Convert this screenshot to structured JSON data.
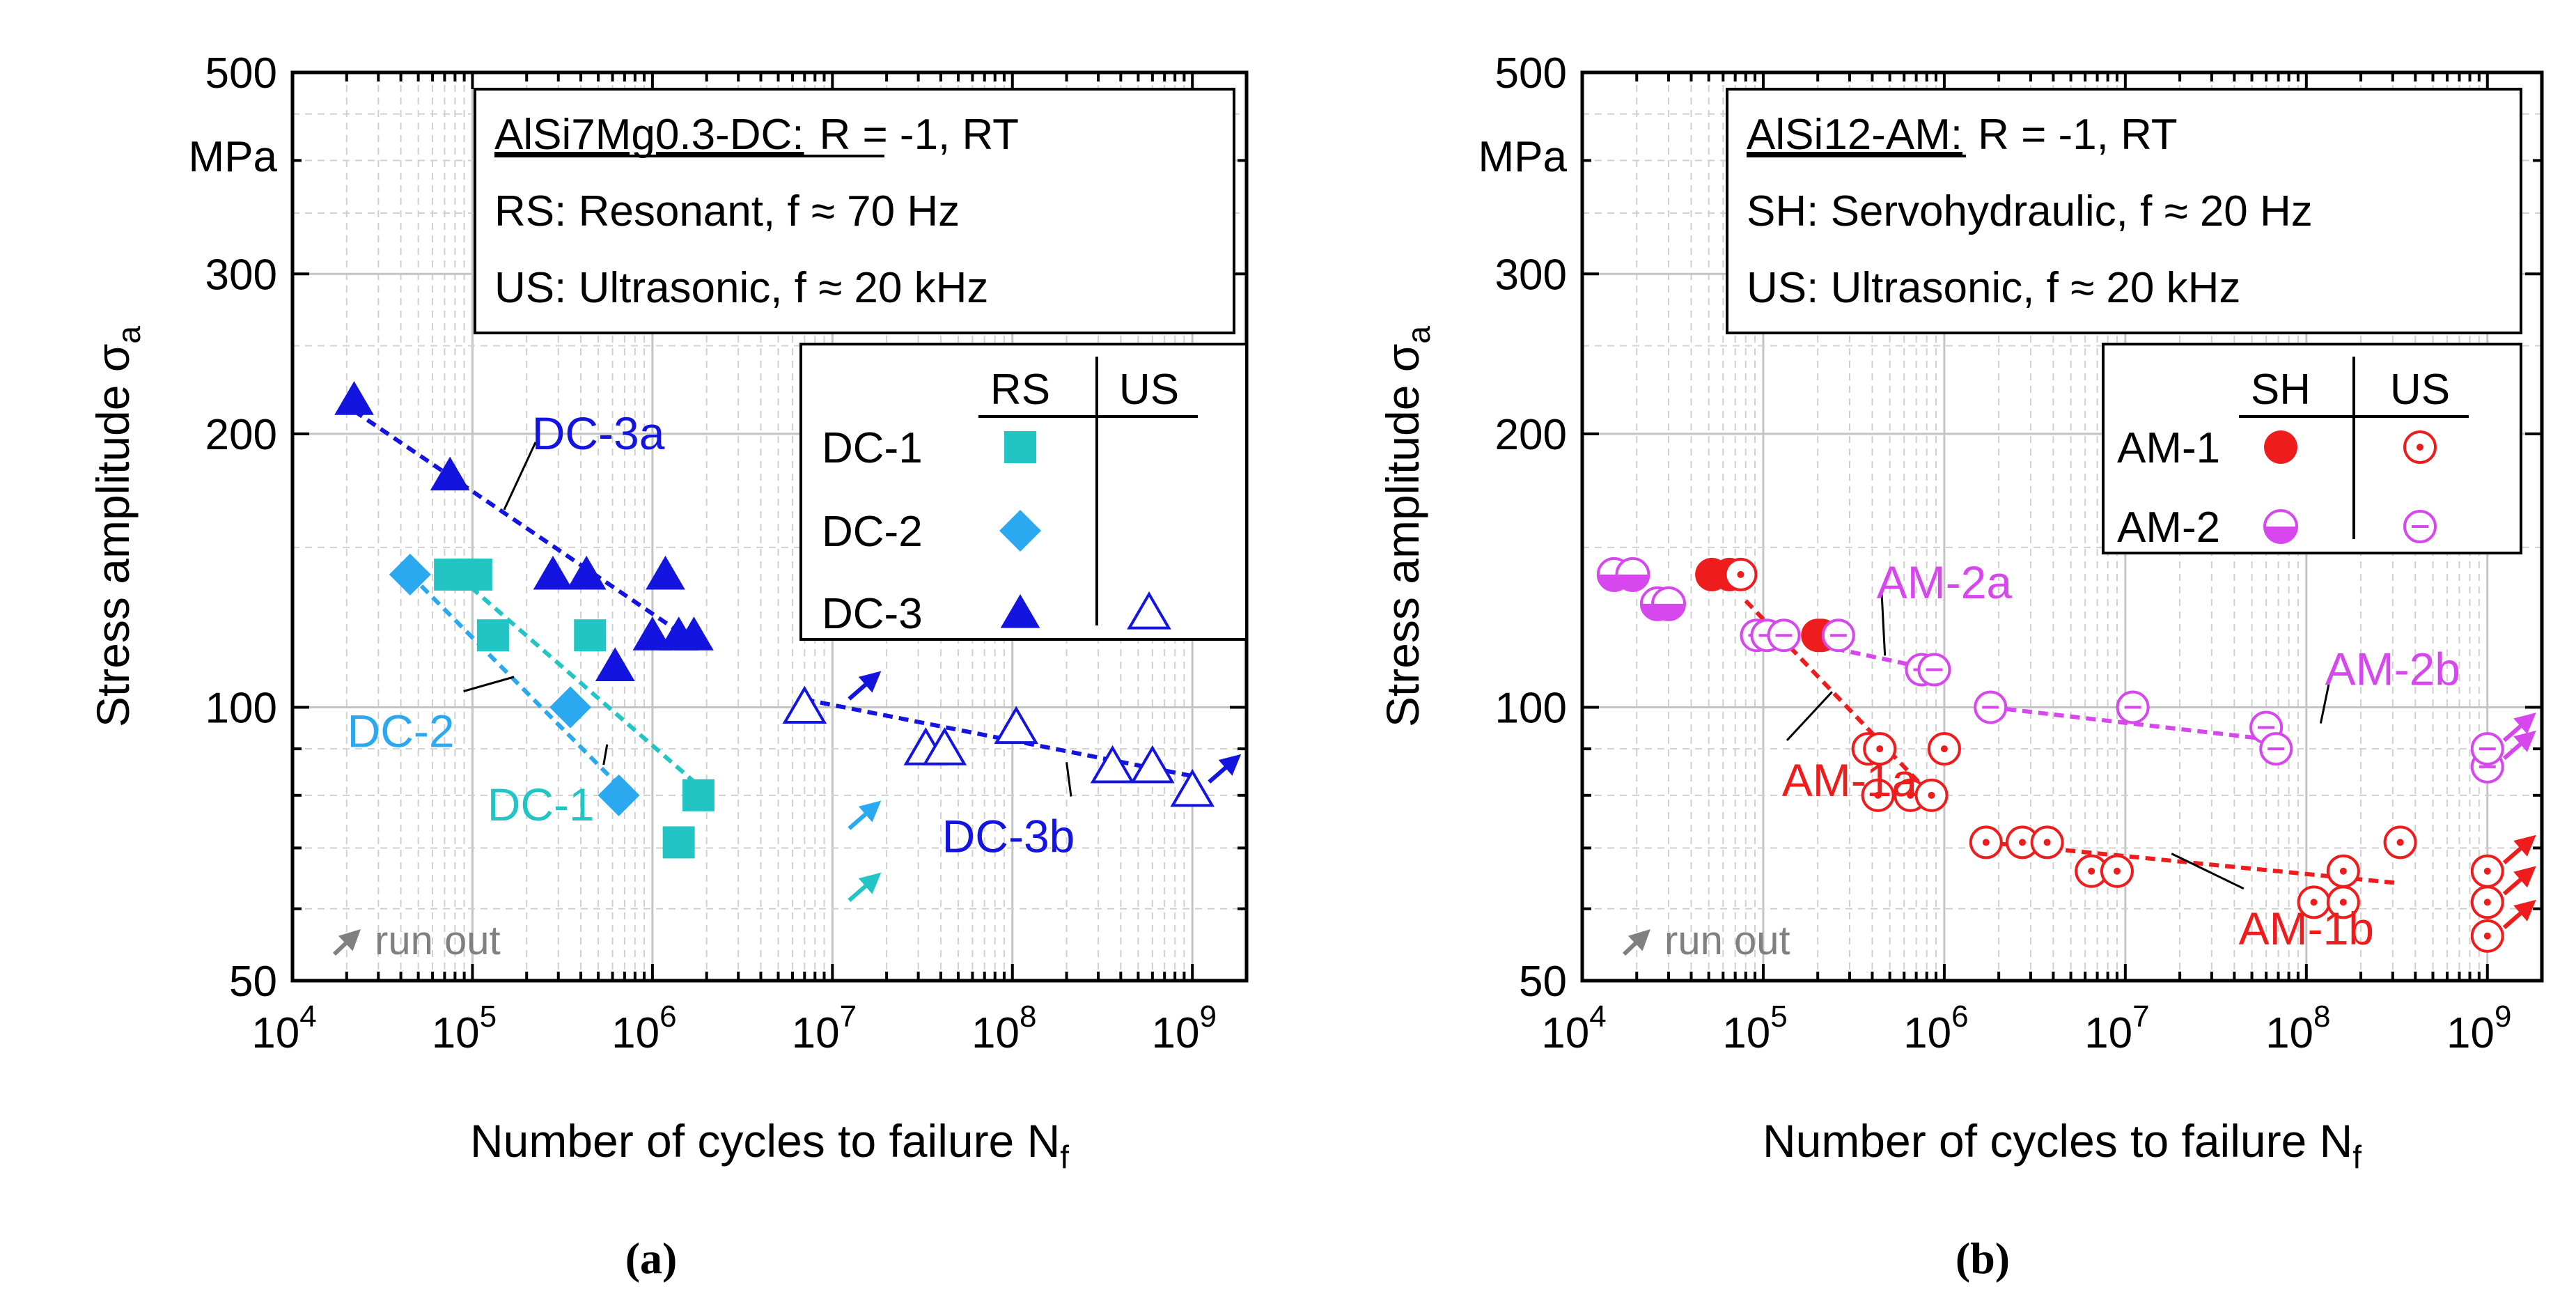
{
  "colors": {
    "dc1": "#22c4c4",
    "dc2": "#2aa8f0",
    "dc3": "#1414e0",
    "am1": "#ee1c1c",
    "am2": "#d648ee",
    "runout": "#808080"
  },
  "captions": {
    "a": "(a)",
    "b": "(b)"
  },
  "chart_data": [
    {
      "id": "a",
      "type": "scatter",
      "x_scale": "log",
      "y_scale": "log",
      "xlim": [
        10000,
        2000000000
      ],
      "ylim": [
        50,
        500
      ],
      "x_ticks": [
        {
          "value": 10000,
          "base": "10",
          "exp": "4"
        },
        {
          "value": 100000,
          "base": "10",
          "exp": "5"
        },
        {
          "value": 1000000,
          "base": "10",
          "exp": "6"
        },
        {
          "value": 10000000,
          "base": "10",
          "exp": "7"
        },
        {
          "value": 100000000,
          "base": "10",
          "exp": "8"
        },
        {
          "value": 1000000000,
          "base": "10",
          "exp": "9"
        }
      ],
      "y_ticks": [
        {
          "value": 500,
          "label": "500"
        },
        {
          "value": 300,
          "label": "300"
        },
        {
          "value": 200,
          "label": "200"
        },
        {
          "value": 100,
          "label": "100"
        },
        {
          "value": 50,
          "label": "50"
        }
      ],
      "y_unit": "MPa",
      "ylabel": "Stress amplitude σ",
      "ylabel_sub": "a",
      "xlabel": "Number of cycles to failure N",
      "xlabel_sub": "f",
      "grid": true,
      "info_box": {
        "line1_prefix": "AlSi7Mg0.3-DC:",
        "line1_rest": "R = -1, RT",
        "line2": "RS: Resonant, f ≈ 70 Hz",
        "line3": "US: Ultrasonic, f ≈ 20 kHz"
      },
      "legend": {
        "col1": "RS",
        "col2": "US",
        "rows": [
          {
            "label": "DC-1",
            "col1": "square",
            "col2": null
          },
          {
            "label": "DC-2",
            "col1": "diamond",
            "col2": null
          },
          {
            "label": "DC-3",
            "col1": "triangle",
            "col2": "triangle-open"
          }
        ]
      },
      "runout_label": "run out",
      "series": [
        {
          "name": "DC-1",
          "method": "RS",
          "marker": "square",
          "color_key": "dc1",
          "points": [
            [
              75000,
              140
            ],
            [
              90000,
              140
            ],
            [
              105000,
              140
            ],
            [
              130000,
              120
            ],
            [
              450000,
              120
            ],
            [
              1400000,
              71
            ],
            [
              1800000,
              80
            ]
          ],
          "runouts": [
            [
              10000000,
              60
            ]
          ]
        },
        {
          "name": "DC-2",
          "method": "RS",
          "marker": "diamond",
          "color_key": "dc2",
          "points": [
            [
              45000,
              140
            ],
            [
              350000,
              100
            ],
            [
              650000,
              80
            ]
          ],
          "runouts": [
            [
              10000000,
              72
            ]
          ]
        },
        {
          "name": "DC-3",
          "method": "RS",
          "marker": "triangle",
          "color_key": "dc3",
          "points": [
            [
              22000,
              218
            ],
            [
              75000,
              180
            ],
            [
              280000,
              140
            ],
            [
              430000,
              140
            ],
            [
              620000,
              111
            ],
            [
              1000000,
              120
            ],
            [
              1180000,
              140
            ],
            [
              1400000,
              120
            ],
            [
              1700000,
              120
            ]
          ],
          "runouts": [
            [
              10000000,
              100
            ]
          ]
        },
        {
          "name": "DC-3",
          "method": "US",
          "marker": "triangle-open",
          "color_key": "dc3",
          "points": [
            [
              7000000,
              100
            ],
            [
              33000000,
              90
            ],
            [
              42000000,
              90
            ],
            [
              105000000,
              95
            ],
            [
              360000000,
              86
            ],
            [
              600000000,
              86
            ],
            [
              1000000000,
              81
            ]
          ],
          "runouts": [
            [
              1000000000,
              81
            ]
          ]
        }
      ],
      "fit_lines": [
        {
          "label": "DC-3a",
          "color_key": "dc3",
          "from": [
            22000,
            212
          ],
          "to": [
            1700000,
            118
          ]
        },
        {
          "label": "DC-3b",
          "color_key": "dc3",
          "from": [
            7000000,
            102
          ],
          "to": [
            1000000000,
            84
          ]
        },
        {
          "label": "DC-1",
          "color_key": "dc1",
          "from": [
            72000,
            143
          ],
          "to": [
            1800000,
            82
          ]
        },
        {
          "label": "DC-2",
          "color_key": "dc2",
          "from": [
            45000,
            140
          ],
          "to": [
            650000,
            82
          ]
        }
      ],
      "annotations": [
        {
          "text": "DC-3a",
          "color_key": "dc3",
          "at": [
            500000,
            200
          ],
          "leader_to": [
            150000,
            165
          ]
        },
        {
          "text": "DC-2",
          "color_key": "dc2",
          "at": [
            40000,
            94
          ],
          "leader_to": [
            170000,
            108
          ]
        },
        {
          "text": "DC-1",
          "color_key": "dc1",
          "at": [
            240000,
            78
          ],
          "leader_to": [
            560000,
            91
          ]
        },
        {
          "text": "DC-3b",
          "color_key": "dc3",
          "at": [
            95000000,
            72
          ],
          "leader_to": [
            200000000,
            87
          ]
        }
      ]
    },
    {
      "id": "b",
      "type": "scatter",
      "x_scale": "log",
      "y_scale": "log",
      "xlim": [
        10000,
        2000000000
      ],
      "ylim": [
        50,
        500
      ],
      "x_ticks": [
        {
          "value": 10000,
          "base": "10",
          "exp": "4"
        },
        {
          "value": 100000,
          "base": "10",
          "exp": "5"
        },
        {
          "value": 1000000,
          "base": "10",
          "exp": "6"
        },
        {
          "value": 10000000,
          "base": "10",
          "exp": "7"
        },
        {
          "value": 100000000,
          "base": "10",
          "exp": "8"
        },
        {
          "value": 1000000000,
          "base": "10",
          "exp": "9"
        }
      ],
      "y_ticks": [
        {
          "value": 500,
          "label": "500"
        },
        {
          "value": 300,
          "label": "300"
        },
        {
          "value": 200,
          "label": "200"
        },
        {
          "value": 100,
          "label": "100"
        },
        {
          "value": 50,
          "label": "50"
        }
      ],
      "y_unit": "MPa",
      "ylabel": "Stress amplitude σ",
      "ylabel_sub": "a",
      "xlabel": "Number of cycles to failure N",
      "xlabel_sub": "f",
      "grid": true,
      "info_box": {
        "line1_prefix": "AlSi12-AM:",
        "line1_rest": "R = -1, RT",
        "line2": "SH: Servohydraulic, f ≈ 20 Hz",
        "line3": "US: Ultrasonic, f ≈ 20 kHz"
      },
      "legend": {
        "col1": "SH",
        "col2": "US",
        "rows": [
          {
            "label": "AM-1",
            "col1": "circle",
            "col2": "circle-dot"
          },
          {
            "label": "AM-2",
            "col1": "circle-half",
            "col2": "circle-dash"
          }
        ]
      },
      "runout_label": "run out",
      "series": [
        {
          "name": "AM-1",
          "method": "SH",
          "marker": "circle",
          "color_key": "am1",
          "points": [
            [
              52000,
              140
            ],
            [
              65000,
              140
            ],
            [
              200000,
              120
            ],
            [
              210000,
              120
            ]
          ],
          "runouts": []
        },
        {
          "name": "AM-1",
          "method": "US",
          "marker": "circle-dot",
          "color_key": "am1",
          "points": [
            [
              75000,
              140
            ],
            [
              380000,
              90
            ],
            [
              440000,
              90
            ],
            [
              430000,
              80
            ],
            [
              650000,
              80
            ],
            [
              850000,
              80
            ],
            [
              1000000,
              90
            ],
            [
              1700000,
              71
            ],
            [
              2700000,
              71
            ],
            [
              3700000,
              71
            ],
            [
              6500000,
              66
            ],
            [
              9000000,
              66
            ],
            [
              110000000,
              61
            ],
            [
              160000000,
              61
            ],
            [
              160000000,
              66
            ],
            [
              330000000,
              71
            ],
            [
              1000000000,
              56
            ],
            [
              1000000000,
              61
            ],
            [
              1000000000,
              66
            ]
          ],
          "runouts": [
            [
              1000000000,
              56
            ],
            [
              1000000000,
              61
            ],
            [
              1000000000,
              66
            ]
          ]
        },
        {
          "name": "AM-2",
          "method": "SH",
          "marker": "circle-half",
          "color_key": "am2",
          "points": [
            [
              15000,
              140
            ],
            [
              19000,
              140
            ],
            [
              26000,
              130
            ],
            [
              30000,
              130
            ]
          ],
          "runouts": []
        },
        {
          "name": "AM-2",
          "method": "US",
          "marker": "circle-dash",
          "color_key": "am2",
          "points": [
            [
              92000,
              120
            ],
            [
              105000,
              120
            ],
            [
              130000,
              120
            ],
            [
              260000,
              120
            ],
            [
              750000,
              110
            ],
            [
              880000,
              110
            ],
            [
              1800000,
              100
            ],
            [
              11000000,
              100
            ],
            [
              60000000,
              95
            ],
            [
              68000000,
              90
            ],
            [
              1000000000,
              86
            ],
            [
              1000000000,
              90
            ]
          ],
          "runouts": [
            [
              1000000000,
              86
            ],
            [
              1000000000,
              90
            ]
          ]
        }
      ],
      "fit_lines": [
        {
          "label": "AM-2a",
          "color_key": "am2",
          "from": [
            92000,
            121
          ],
          "to": [
            880000,
            110
          ]
        },
        {
          "label": "AM-2b",
          "color_key": "am2",
          "from": [
            1800000,
            100
          ],
          "to": [
            68000000,
            92
          ]
        },
        {
          "label": "AM-1a",
          "color_key": "am1",
          "from": [
            80000,
            131
          ],
          "to": [
            900000,
            79
          ]
        },
        {
          "label": "AM-1b",
          "color_key": "am1",
          "from": [
            1700000,
            71
          ],
          "to": [
            330000000,
            64
          ]
        }
      ],
      "annotations": [
        {
          "text": "AM-2a",
          "color_key": "am2",
          "at": [
            1000000,
            137
          ],
          "leader_to": [
            470000,
            114
          ]
        },
        {
          "text": "AM-2b",
          "color_key": "am2",
          "at": [
            300000000,
            110
          ],
          "leader_to": [
            120000000,
            96
          ]
        },
        {
          "text": "AM-1a",
          "color_key": "am1",
          "at": [
            300000,
            83
          ],
          "leader_to": [
            240000,
            104
          ]
        },
        {
          "text": "AM-1b",
          "color_key": "am1",
          "at": [
            100000000,
            57
          ],
          "leader_to": [
            18000000,
            69
          ]
        }
      ]
    }
  ]
}
